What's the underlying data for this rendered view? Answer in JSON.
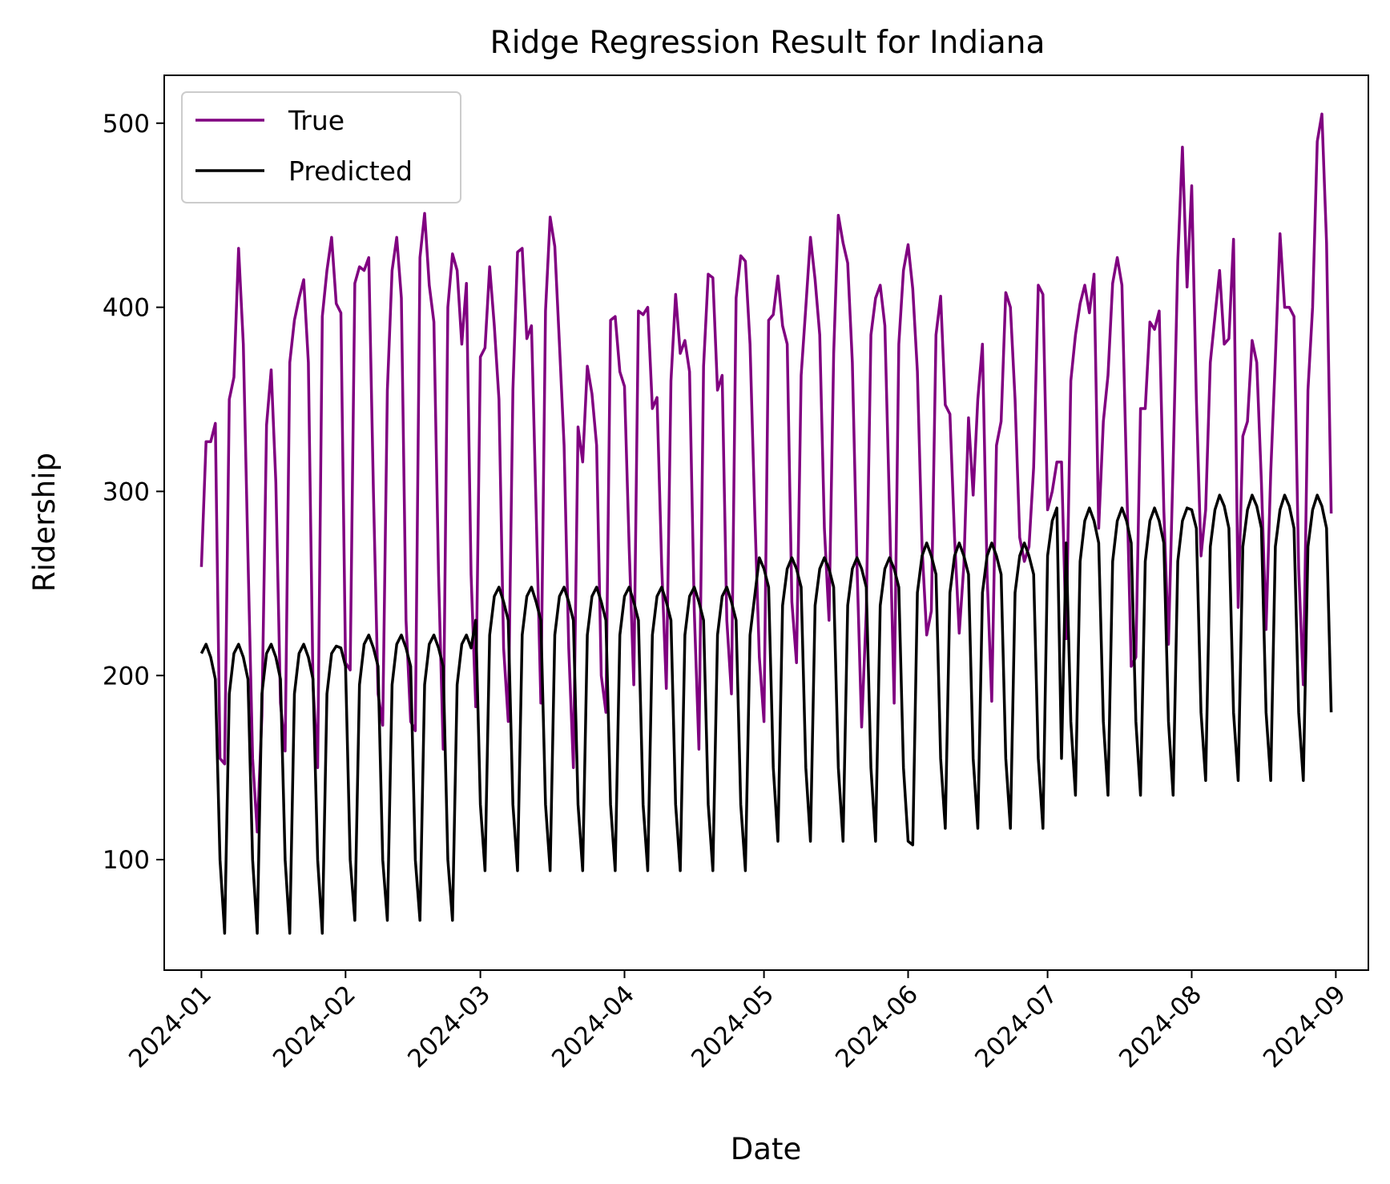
{
  "chart_data": {
    "type": "line",
    "title": "Ridge Regression Result for Indiana",
    "xlabel": "Date",
    "ylabel": "Ridership",
    "x_start": "2024-01-01",
    "x_end": "2024-08-31",
    "xlim": [
      "2023-12-24",
      "2024-09-08"
    ],
    "ylim": [
      40,
      526
    ],
    "x_ticks": [
      "2024-01",
      "2024-02",
      "2024-03",
      "2024-04",
      "2024-05",
      "2024-06",
      "2024-07",
      "2024-08",
      "2024-09"
    ],
    "y_ticks": [
      100,
      200,
      300,
      400,
      500
    ],
    "legend_position": "upper-left",
    "grid": false,
    "series": [
      {
        "name": "True",
        "color": "#800080",
        "values": [
          259,
          327,
          327,
          337,
          155,
          152,
          350,
          362,
          432,
          380,
          265,
          155,
          115,
          178,
          336,
          366,
          305,
          185,
          159,
          370,
          393,
          405,
          415,
          370,
          195,
          150,
          395,
          420,
          438,
          402,
          397,
          207,
          203,
          413,
          422,
          420,
          427,
          300,
          190,
          173,
          355,
          420,
          438,
          405,
          230,
          175,
          170,
          427,
          451,
          412,
          392,
          255,
          160,
          400,
          429,
          420,
          380,
          413,
          255,
          183,
          373,
          378,
          422,
          390,
          350,
          215,
          175,
          355,
          430,
          432,
          383,
          390,
          290,
          185,
          398,
          449,
          433,
          380,
          325,
          215,
          150,
          335,
          316,
          368,
          353,
          325,
          200,
          180,
          393,
          395,
          365,
          357,
          270,
          195,
          398,
          396,
          400,
          345,
          351,
          260,
          193,
          360,
          407,
          375,
          382,
          365,
          235,
          160,
          368,
          418,
          416,
          355,
          363,
          230,
          190,
          405,
          428,
          425,
          380,
          290,
          210,
          175,
          393,
          396,
          417,
          390,
          380,
          240,
          207,
          363,
          400,
          438,
          415,
          385,
          280,
          230,
          375,
          450,
          435,
          424,
          370,
          260,
          172,
          235,
          385,
          405,
          412,
          390,
          290,
          185,
          380,
          420,
          434,
          410,
          365,
          270,
          222,
          235,
          385,
          406,
          347,
          342,
          275,
          223,
          260,
          340,
          298,
          350,
          380,
          255,
          186,
          325,
          338,
          408,
          400,
          350,
          275,
          262,
          270,
          313,
          412,
          407,
          290,
          300,
          316,
          316,
          220,
          360,
          385,
          402,
          412,
          397,
          418,
          280,
          338,
          363,
          413,
          427,
          412,
          308,
          205,
          210,
          345,
          345,
          392,
          388,
          398,
          290,
          217,
          315,
          425,
          487,
          411,
          466,
          350,
          265,
          290,
          370,
          395,
          420,
          380,
          383,
          437,
          237,
          330,
          338,
          382,
          370,
          305,
          225,
          310,
          372,
          440,
          400,
          400,
          395,
          258,
          195,
          355,
          400,
          490,
          505,
          435,
          288
        ]
      },
      {
        "name": "Predicted",
        "color": "#000000",
        "values": [
          212,
          217,
          210,
          198,
          100,
          60,
          190,
          212,
          217,
          210,
          198,
          100,
          60,
          190,
          212,
          217,
          210,
          198,
          100,
          60,
          190,
          212,
          217,
          210,
          198,
          100,
          60,
          190,
          212,
          216,
          215,
          205,
          100,
          67,
          195,
          217,
          222,
          215,
          205,
          100,
          67,
          195,
          217,
          222,
          215,
          205,
          100,
          67,
          195,
          217,
          222,
          215,
          205,
          100,
          67,
          195,
          217,
          222,
          215,
          230,
          130,
          94,
          222,
          243,
          248,
          240,
          230,
          130,
          94,
          222,
          243,
          248,
          240,
          230,
          130,
          94,
          222,
          243,
          248,
          240,
          230,
          130,
          94,
          222,
          243,
          248,
          240,
          230,
          130,
          94,
          222,
          243,
          248,
          240,
          230,
          130,
          94,
          222,
          243,
          248,
          240,
          230,
          130,
          94,
          222,
          243,
          248,
          240,
          230,
          130,
          94,
          222,
          243,
          248,
          240,
          230,
          130,
          94,
          222,
          243,
          264,
          258,
          248,
          150,
          110,
          238,
          258,
          264,
          258,
          248,
          150,
          110,
          238,
          258,
          264,
          258,
          248,
          150,
          110,
          238,
          258,
          264,
          258,
          248,
          150,
          110,
          238,
          258,
          264,
          258,
          248,
          150,
          110,
          108,
          245,
          265,
          272,
          265,
          255,
          155,
          117,
          245,
          265,
          272,
          265,
          255,
          155,
          117,
          245,
          265,
          272,
          265,
          255,
          155,
          117,
          245,
          265,
          272,
          265,
          255,
          155,
          117,
          265,
          284,
          291,
          155,
          272,
          175,
          135,
          262,
          284,
          291,
          284,
          272,
          175,
          135,
          262,
          284,
          291,
          284,
          272,
          175,
          135,
          262,
          284,
          291,
          284,
          272,
          175,
          135,
          262,
          284,
          291,
          290,
          280,
          180,
          143,
          270,
          290,
          298,
          292,
          280,
          180,
          143,
          270,
          290,
          298,
          292,
          280,
          180,
          143,
          270,
          290,
          298,
          292,
          280,
          180,
          143,
          270,
          290,
          298,
          292,
          280,
          180
        ]
      }
    ]
  }
}
